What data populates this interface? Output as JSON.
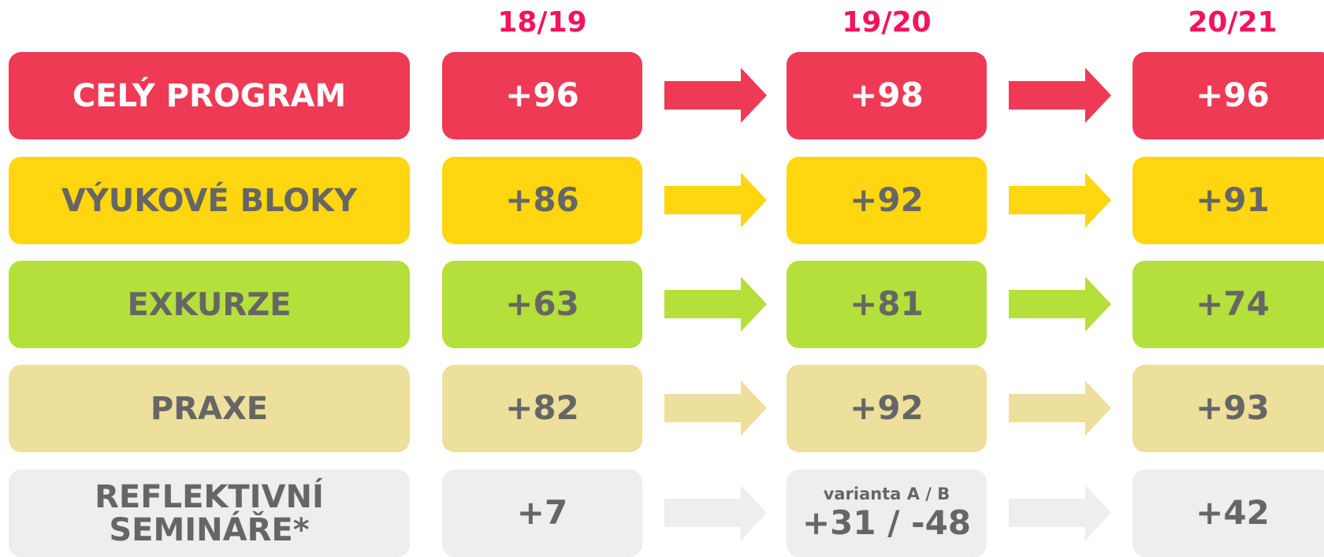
{
  "columns": [
    "18/19",
    "19/20",
    "20/21"
  ],
  "rows": [
    {
      "label": "CELÝ PROGRAM",
      "values": [
        "+96",
        "+98",
        "+96"
      ]
    },
    {
      "label": "VÝUKOVÉ BLOKY",
      "values": [
        "+86",
        "+92",
        "+91"
      ]
    },
    {
      "label": "EXKURZE",
      "values": [
        "+63",
        "+81",
        "+74"
      ]
    },
    {
      "label": "PRAXE",
      "values": [
        "+82",
        "+92",
        "+93"
      ]
    },
    {
      "label": "REFLEKTIVNÍ SEMINÁŘE*",
      "values": [
        "+7",
        "+31 / -48",
        "+42"
      ],
      "value_note": "varianta A / B"
    }
  ]
}
